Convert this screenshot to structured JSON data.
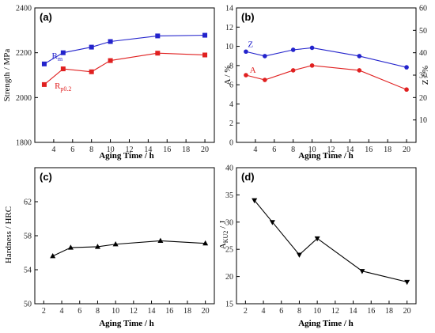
{
  "chart_data": [
    {
      "id": "a",
      "type": "line",
      "panel_label": "(a)",
      "xlabel": "Aging Time / h",
      "ylabel": "Strength / MPa",
      "xlim": [
        2,
        21
      ],
      "ylim": [
        1800,
        2400
      ],
      "xticks": [
        4,
        6,
        8,
        10,
        12,
        14,
        16,
        18,
        20
      ],
      "yticks": [
        1800,
        2000,
        2200,
        2400
      ],
      "series": [
        {
          "name": "Rm",
          "name_main": "R",
          "name_sub": "m",
          "color": "#2323cc",
          "marker": "square",
          "x": [
            3,
            5,
            8,
            10,
            15,
            20
          ],
          "y": [
            2150,
            2200,
            2225,
            2250,
            2275,
            2278
          ],
          "label_pos": [
            3.8,
            2175
          ],
          "label_color": "#2323cc"
        },
        {
          "name": "Rp0.2",
          "name_main": "R",
          "name_sub": "p0.2",
          "color": "#e02020",
          "marker": "square",
          "x": [
            3,
            5,
            8,
            10,
            15,
            20
          ],
          "y": [
            2058,
            2128,
            2115,
            2165,
            2198,
            2190
          ],
          "label_pos": [
            4.1,
            2040
          ],
          "label_color": "#e02020"
        }
      ]
    },
    {
      "id": "b",
      "type": "line",
      "panel_label": "(b)",
      "xlabel": "Aging Time / h",
      "ylabel": "A / %",
      "ylabel_right": "Z / %",
      "xlim": [
        2,
        21
      ],
      "ylim": [
        0,
        14
      ],
      "ylim_right": [
        0,
        60
      ],
      "xticks": [
        4,
        6,
        8,
        10,
        12,
        14,
        16,
        18,
        20
      ],
      "yticks": [
        0,
        2,
        4,
        6,
        8,
        10,
        12,
        14
      ],
      "yticks_right": [
        10,
        20,
        30,
        40,
        50,
        60
      ],
      "series": [
        {
          "name": "Z",
          "name_main": "Z",
          "name_sub": "",
          "color": "#2323cc",
          "marker": "circle",
          "axis": "right",
          "x": [
            3,
            5,
            8,
            10,
            15,
            20
          ],
          "y": [
            40.5,
            38.5,
            41.3,
            42.2,
            38.5,
            33.5
          ],
          "label_pos": [
            3.2,
            42.5
          ],
          "label_color": "#2323cc"
        },
        {
          "name": "A",
          "name_main": "A",
          "name_sub": "",
          "color": "#e02020",
          "marker": "circle",
          "axis": "left",
          "x": [
            3,
            5,
            8,
            10,
            15,
            20
          ],
          "y": [
            7.0,
            6.5,
            7.5,
            8.0,
            7.5,
            5.5
          ],
          "label_pos": [
            3.4,
            7.25
          ],
          "label_color": "#e02020"
        }
      ]
    },
    {
      "id": "c",
      "type": "line",
      "panel_label": "(c)",
      "xlabel": "Aging Time / h",
      "ylabel": "Hardness / HRC",
      "xlim": [
        1,
        21
      ],
      "ylim": [
        50,
        66
      ],
      "xticks": [
        2,
        4,
        6,
        8,
        10,
        12,
        14,
        16,
        18,
        20
      ],
      "yticks": [
        50,
        54,
        58,
        62
      ],
      "series": [
        {
          "name": "",
          "color": "#000000",
          "marker": "triangle-up",
          "x": [
            3,
            5,
            8,
            10,
            15,
            20
          ],
          "y": [
            55.6,
            56.6,
            56.7,
            57.0,
            57.4,
            57.1
          ]
        }
      ]
    },
    {
      "id": "d",
      "type": "line",
      "panel_label": "(d)",
      "xlabel": "Aging Time / h",
      "ylabel": "A",
      "ylabel_sub": "KU2",
      "ylabel_tail": " / J",
      "xlim": [
        1,
        21
      ],
      "ylim": [
        15,
        40
      ],
      "xticks": [
        2,
        4,
        6,
        8,
        10,
        12,
        14,
        16,
        18,
        20
      ],
      "yticks": [
        15,
        20,
        25,
        30,
        35,
        40
      ],
      "series": [
        {
          "name": "",
          "color": "#000000",
          "marker": "triangle-down",
          "x": [
            3,
            5,
            8,
            10,
            15,
            20
          ],
          "y": [
            34,
            30,
            24,
            27,
            21,
            19
          ]
        }
      ]
    }
  ]
}
